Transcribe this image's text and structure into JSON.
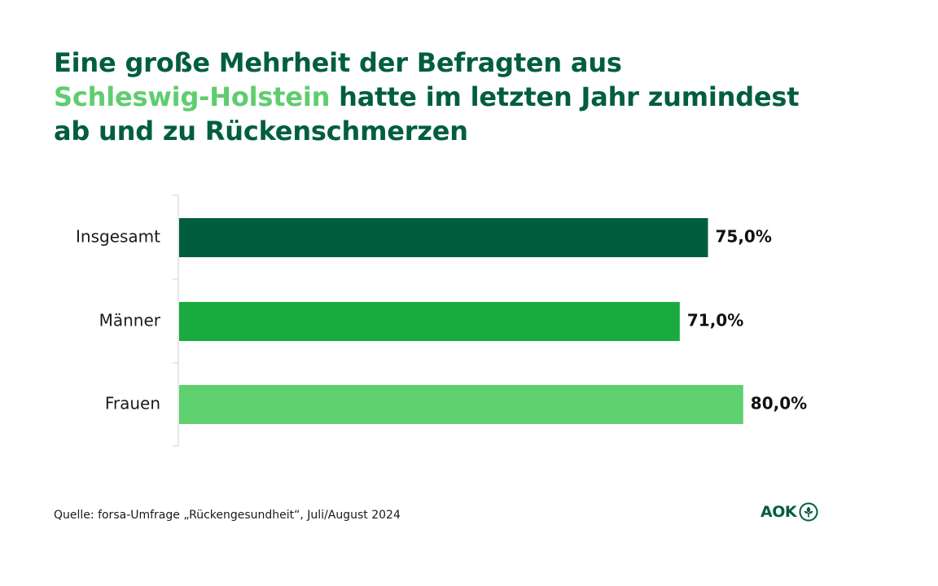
{
  "title": {
    "line1": "Eine große Mehrheit der Befragten aus",
    "highlight": "Schleswig-Holstein",
    "line2_rest": " hatte im letzten Jahr zumindest",
    "line3": "ab und zu Rückenschmerzen"
  },
  "chart_data": {
    "type": "bar",
    "orientation": "horizontal",
    "categories": [
      "Insgesamt",
      "Männer",
      "Frauen"
    ],
    "values": [
      75.0,
      71.0,
      80.0
    ],
    "value_labels": [
      "75,0%",
      "71,0%",
      "80,0%"
    ],
    "colors": [
      "#005e3f",
      "#1aab40",
      "#5fd06f"
    ],
    "xlim": [
      0,
      100
    ],
    "unit": "%",
    "title": "",
    "xlabel": "",
    "ylabel": "",
    "grid": false
  },
  "source": "Quelle: forsa-Umfrage „Rückengesundheit“, Juli/August 2024",
  "logo": {
    "text": "AOK",
    "icon": "aok-tree-icon",
    "color": "#005e3f"
  }
}
